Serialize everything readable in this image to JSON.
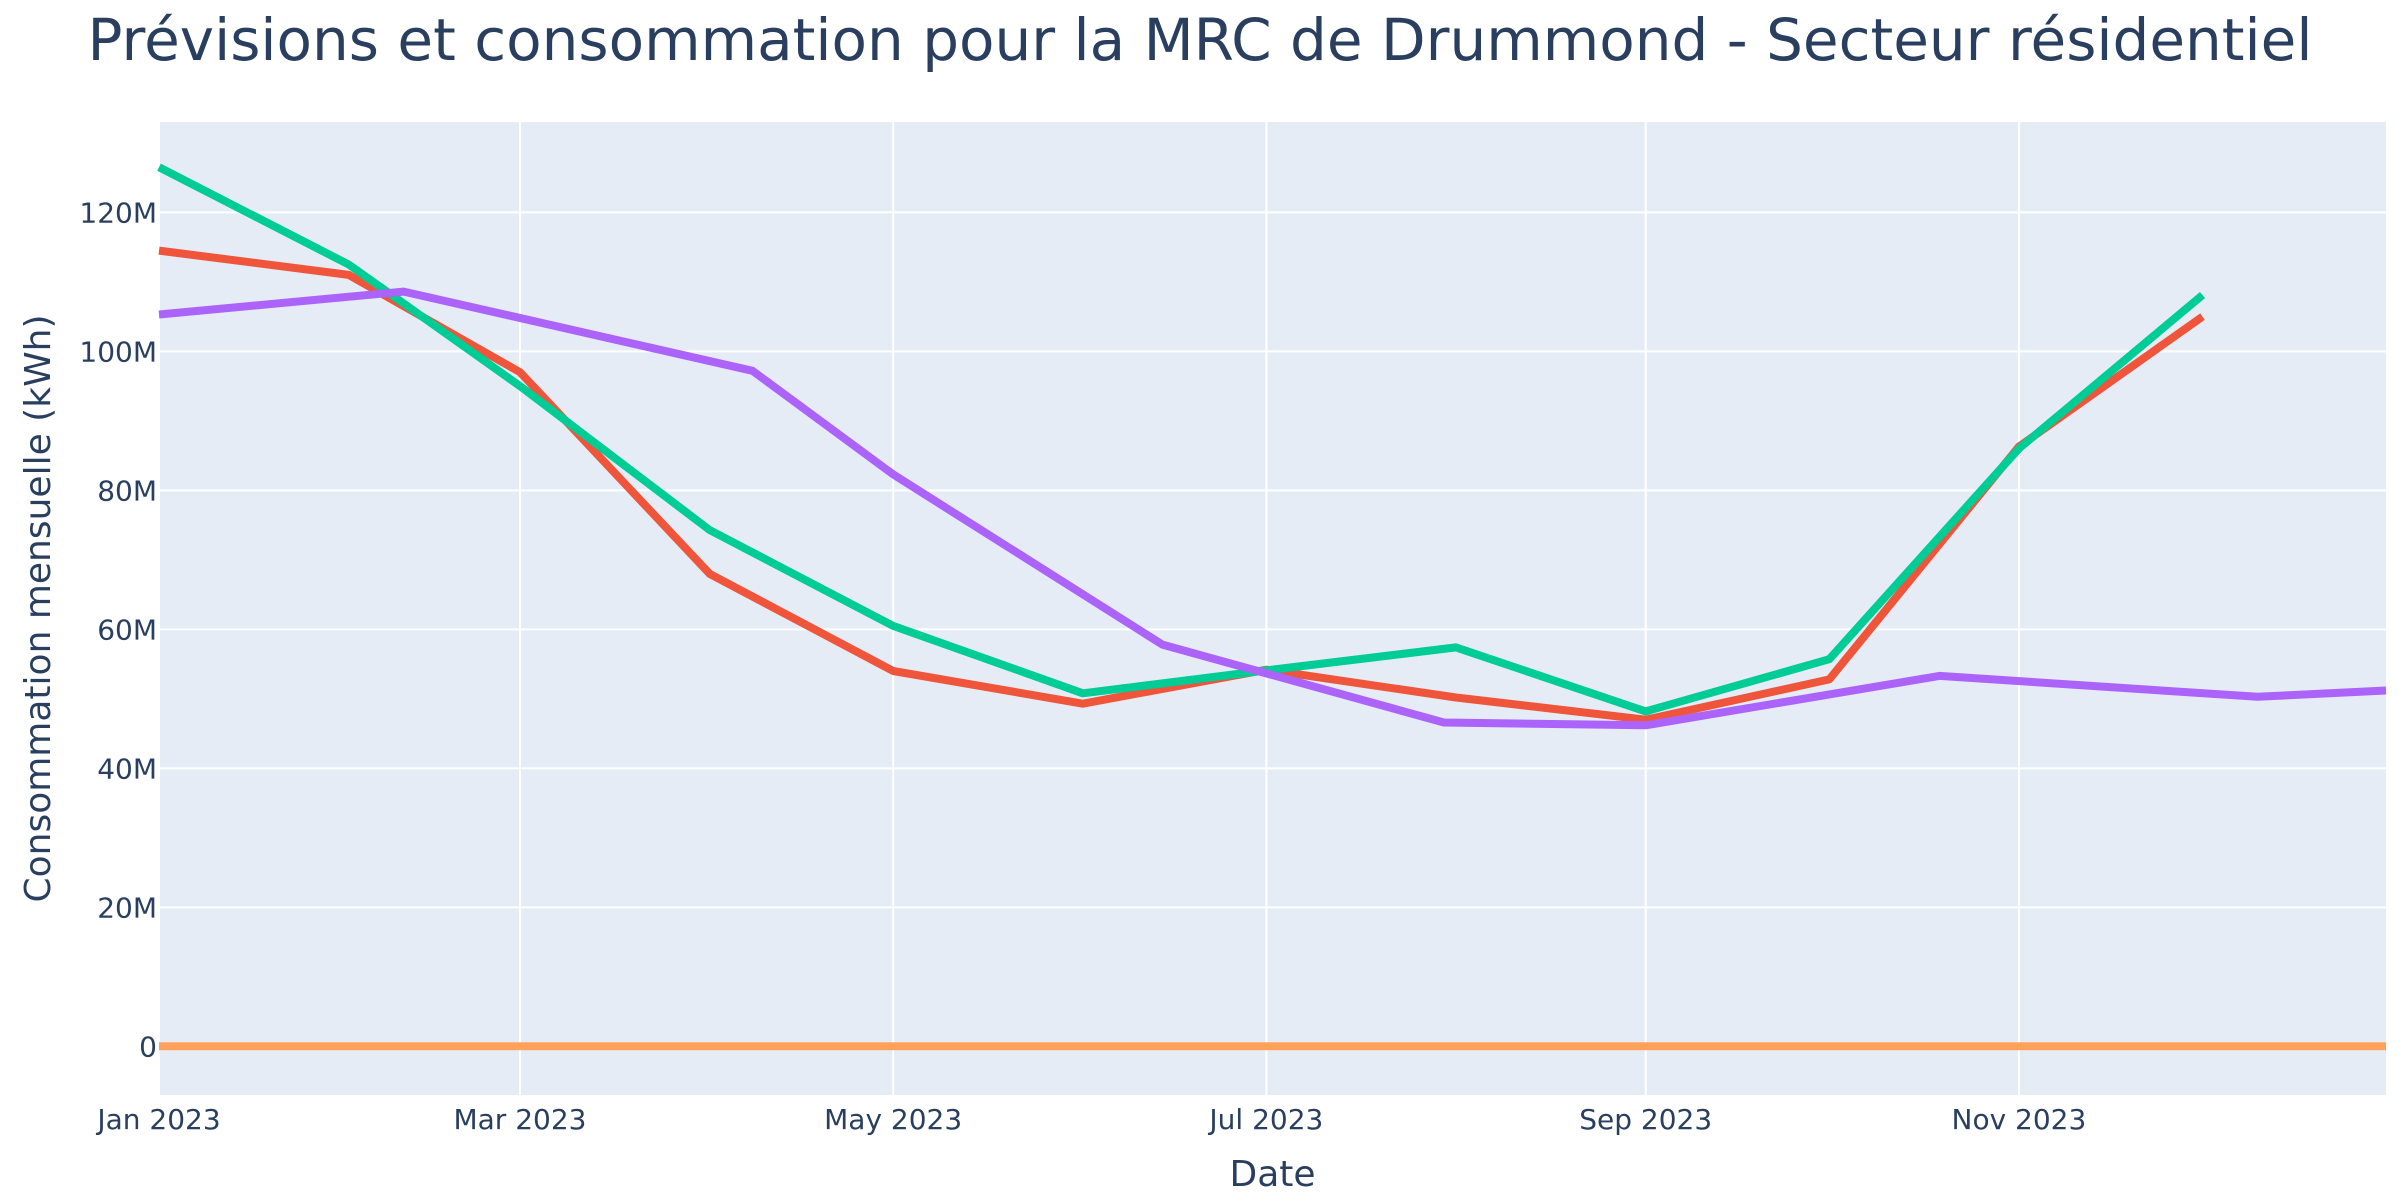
{
  "chart_data": {
    "type": "line",
    "title": "Prévisions et consommation pour la MRC de Drummond - Secteur résidentiel",
    "xlabel": "Date",
    "ylabel": "Consommation mensuelle (kWh)",
    "xlim": [
      "2023-01-01",
      "2023-12-31"
    ],
    "ylim": [
      -7000000,
      133000000
    ],
    "x_ticks": [
      {
        "date": "2023-01-01",
        "label": "Jan 2023"
      },
      {
        "date": "2023-03-01",
        "label": "Mar 2023"
      },
      {
        "date": "2023-05-01",
        "label": "May 2023"
      },
      {
        "date": "2023-07-01",
        "label": "Jul 2023"
      },
      {
        "date": "2023-09-01",
        "label": "Sep 2023"
      },
      {
        "date": "2023-11-01",
        "label": "Nov 2023"
      }
    ],
    "y_ticks": [
      {
        "value": 0,
        "label": "0"
      },
      {
        "value": 20000000,
        "label": "20M"
      },
      {
        "value": 40000000,
        "label": "40M"
      },
      {
        "value": 60000000,
        "label": "60M"
      },
      {
        "value": 80000000,
        "label": "80M"
      },
      {
        "value": 100000000,
        "label": "100M"
      },
      {
        "value": 120000000,
        "label": "120M"
      }
    ],
    "grid": true,
    "plot_background": "#e5ecf6",
    "series": [
      {
        "color": "#ef553b",
        "x": [
          "2023-01-01",
          "2023-02-01",
          "2023-03-01",
          "2023-04-01",
          "2023-05-01",
          "2023-06-01",
          "2023-07-01",
          "2023-08-01",
          "2023-09-01",
          "2023-10-01",
          "2023-11-01",
          "2023-12-01"
        ],
        "y": [
          114500000,
          111000000,
          97000000,
          68000000,
          54000000,
          49300000,
          54200000,
          50200000,
          47000000,
          52800000,
          86300000,
          105000000
        ]
      },
      {
        "color": "#00cc96",
        "x": [
          "2023-01-01",
          "2023-02-01",
          "2023-03-01",
          "2023-04-01",
          "2023-05-01",
          "2023-06-01",
          "2023-07-01",
          "2023-08-01",
          "2023-09-01",
          "2023-10-01",
          "2023-11-01",
          "2023-12-01"
        ],
        "y": [
          126500000,
          112500000,
          95000000,
          74300000,
          60500000,
          50800000,
          54100000,
          57400000,
          48200000,
          55700000,
          86000000,
          108100000
        ]
      },
      {
        "color": "#ab63fa",
        "x": [
          "2023-01-01",
          "2023-02-10",
          "2023-04-08",
          "2023-05-01",
          "2023-06-14",
          "2023-07-30",
          "2023-09-01",
          "2023-10-19",
          "2023-12-10",
          "2023-12-31"
        ],
        "y": [
          105300000,
          108600000,
          97200000,
          82300000,
          57800000,
          46600000,
          46200000,
          53300000,
          50300000,
          51200000
        ]
      },
      {
        "color": "#ffa15a",
        "x": [
          "2023-01-01",
          "2023-12-31"
        ],
        "y": [
          0,
          0
        ]
      }
    ]
  }
}
